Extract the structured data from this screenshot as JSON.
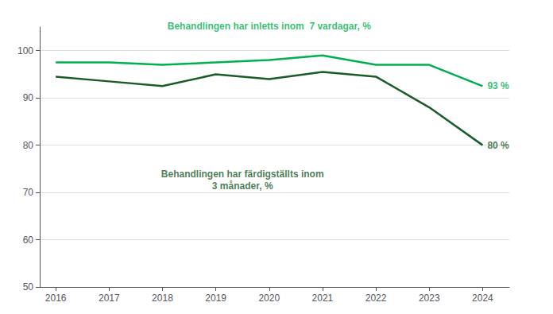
{
  "chart_data": {
    "type": "line",
    "x": [
      2016,
      2017,
      2018,
      2019,
      2020,
      2021,
      2022,
      2023,
      2024
    ],
    "series": [
      {
        "color": "#00b050",
        "values": [
          97.5,
          97.5,
          97.0,
          97.5,
          98.0,
          99.0,
          97.0,
          97.0,
          92.5
        ]
      },
      {
        "color": "#1a5c2a",
        "values": [
          94.5,
          93.5,
          92.5,
          95.0,
          94.0,
          95.5,
          94.5,
          88.0,
          80.0
        ]
      }
    ],
    "annotations": [
      {
        "text": "93 %",
        "x": 2024,
        "y": 92.5,
        "color": "#00b050"
      },
      {
        "text": "80 %",
        "x": 2024,
        "y": 80.0,
        "color": "#1a5c2a"
      },
      {
        "text": "Behandlingen har inletts inom  7 vardagar, %",
        "x": 2020.0,
        "y": 103.5,
        "color": "#00b050"
      },
      {
        "text": "Behandlingen har färdigställts inom\n3 månader, %",
        "x": 2019.5,
        "y": 75.5,
        "color": "#1a5c2a"
      }
    ],
    "xlim": [
      2015.7,
      2024.5
    ],
    "xticks": [
      2016,
      2017,
      2018,
      2019,
      2020,
      2021,
      2022,
      2023,
      2024
    ],
    "ylim": [
      50,
      105
    ],
    "yticks": [
      50,
      60,
      70,
      80,
      90,
      100
    ],
    "grid": true
  }
}
